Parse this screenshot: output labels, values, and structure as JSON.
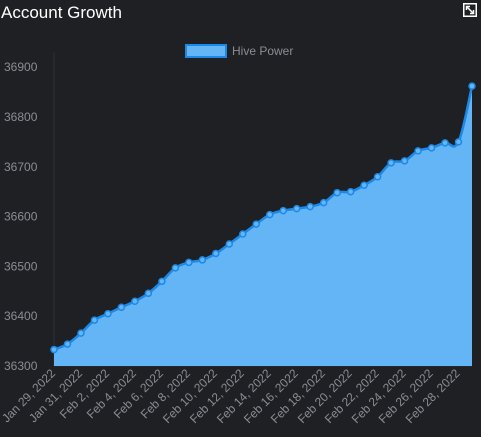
{
  "header": {
    "title": "Account Growth",
    "expand_icon": "expand-icon"
  },
  "colors": {
    "background": "#1f2024",
    "area_fill": "#64b5f6",
    "line": "#1e88e5",
    "axis_text": "#8a8d93",
    "grid": "#2e3036"
  },
  "chart_data": {
    "type": "area",
    "title": "Account Growth",
    "legend": {
      "position": "top-center",
      "entries": [
        "Hive Power"
      ]
    },
    "series": [
      {
        "name": "Hive Power",
        "x": [
          "Jan 29, 2022",
          "Jan 30, 2022",
          "Jan 31, 2022",
          "Feb 1, 2022",
          "Feb 2, 2022",
          "Feb 3, 2022",
          "Feb 4, 2022",
          "Feb 5, 2022",
          "Feb 6, 2022",
          "Feb 7, 2022",
          "Feb 8, 2022",
          "Feb 9, 2022",
          "Feb 10, 2022",
          "Feb 11, 2022",
          "Feb 12, 2022",
          "Feb 13, 2022",
          "Feb 14, 2022",
          "Feb 15, 2022",
          "Feb 16, 2022",
          "Feb 17, 2022",
          "Feb 18, 2022",
          "Feb 19, 2022",
          "Feb 20, 2022",
          "Feb 21, 2022",
          "Feb 22, 2022",
          "Feb 23, 2022",
          "Feb 24, 2022",
          "Feb 25, 2022",
          "Feb 26, 2022",
          "Feb 27, 2022",
          "Feb 28, 2022",
          "Mar 1, 2022"
        ],
        "values": [
          36333,
          36344,
          36366,
          36392,
          36405,
          36418,
          36430,
          36446,
          36470,
          36497,
          36508,
          36513,
          36526,
          36545,
          36565,
          36585,
          36604,
          36612,
          36616,
          36620,
          36628,
          36648,
          36650,
          36663,
          36680,
          36708,
          36712,
          36732,
          36738,
          36748,
          36750,
          36862
        ]
      }
    ],
    "x_tick_labels": [
      "Jan 29, 2022",
      "Jan 31, 2022",
      "Feb 2, 2022",
      "Feb 4, 2022",
      "Feb 6, 2022",
      "Feb 8, 2022",
      "Feb 10, 2022",
      "Feb 12, 2022",
      "Feb 14, 2022",
      "Feb 16, 2022",
      "Feb 18, 2022",
      "Feb 20, 2022",
      "Feb 22, 2022",
      "Feb 24, 2022",
      "Feb 26, 2022",
      "Feb 28, 2022"
    ],
    "y_ticks": [
      36300,
      36400,
      36500,
      36600,
      36700,
      36800,
      36900
    ],
    "ylim": [
      36300,
      36930
    ],
    "grid": false,
    "xlabel": "",
    "ylabel": ""
  }
}
